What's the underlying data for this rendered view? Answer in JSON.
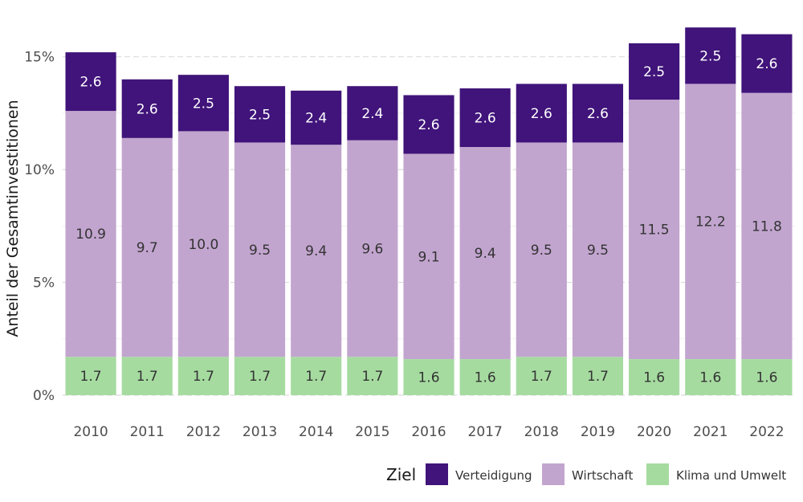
{
  "chart_data": {
    "type": "bar",
    "stacked": true,
    "categories": [
      "2010",
      "2011",
      "2012",
      "2013",
      "2014",
      "2015",
      "2016",
      "2017",
      "2018",
      "2019",
      "2020",
      "2021",
      "2022"
    ],
    "series": [
      {
        "name": "Klima und Umwelt",
        "color": "#a6dba0",
        "label_color": "#333333",
        "values": [
          1.7,
          1.7,
          1.7,
          1.7,
          1.7,
          1.7,
          1.6,
          1.6,
          1.7,
          1.7,
          1.6,
          1.6,
          1.6
        ]
      },
      {
        "name": "Wirtschaft",
        "color": "#c2a5cf",
        "label_color": "#333333",
        "values": [
          10.9,
          9.7,
          10.0,
          9.5,
          9.4,
          9.6,
          9.1,
          9.4,
          9.5,
          9.5,
          11.5,
          12.2,
          11.8
        ]
      },
      {
        "name": "Verteidigung",
        "color": "#40147a",
        "label_color": "#ffffff",
        "values": [
          2.6,
          2.6,
          2.5,
          2.5,
          2.4,
          2.4,
          2.6,
          2.6,
          2.6,
          2.6,
          2.5,
          2.5,
          2.6
        ]
      }
    ],
    "ylabel": "Anteil der Gesamtinvestitionen",
    "xlabel": "",
    "ylim": [
      0,
      16.2
    ],
    "y_ticks": [
      0,
      5,
      10,
      15
    ],
    "y_tick_labels": [
      "0%",
      "5%",
      "10%",
      "15%"
    ],
    "grid": true,
    "legend": {
      "title": "Ziel",
      "placement": "bottom-right",
      "order": [
        "Verteidigung",
        "Wirtschaft",
        "Klima und Umwelt"
      ]
    }
  }
}
